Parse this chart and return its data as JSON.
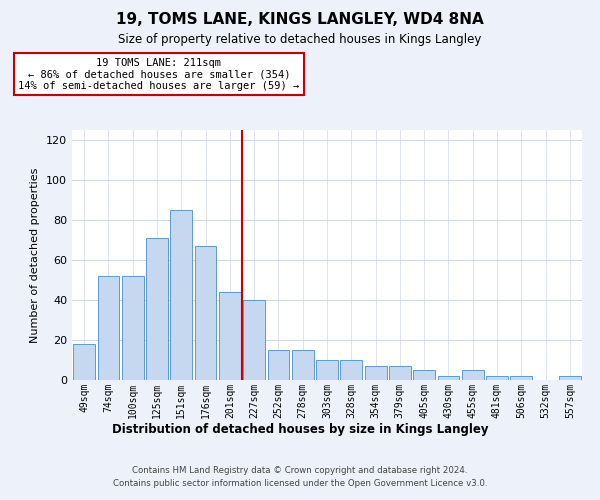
{
  "title": "19, TOMS LANE, KINGS LANGLEY, WD4 8NA",
  "subtitle": "Size of property relative to detached houses in Kings Langley",
  "xlabel": "Distribution of detached houses by size in Kings Langley",
  "ylabel": "Number of detached properties",
  "bar_color": "#c5d8f0",
  "bar_edge_color": "#5b9bd5",
  "categories": [
    "49sqm",
    "74sqm",
    "100sqm",
    "125sqm",
    "151sqm",
    "176sqm",
    "201sqm",
    "227sqm",
    "252sqm",
    "278sqm",
    "303sqm",
    "328sqm",
    "354sqm",
    "379sqm",
    "405sqm",
    "430sqm",
    "455sqm",
    "481sqm",
    "506sqm",
    "532sqm",
    "557sqm"
  ],
  "values": [
    18,
    52,
    52,
    71,
    85,
    67,
    44,
    40,
    15,
    15,
    10,
    10,
    7,
    7,
    5,
    2,
    5,
    2,
    2,
    0,
    2
  ],
  "ylim": [
    0,
    125
  ],
  "yticks": [
    0,
    20,
    40,
    60,
    80,
    100,
    120
  ],
  "vline_color": "#cc0000",
  "vline_pos": 6.5,
  "annotation_title": "19 TOMS LANE: 211sqm",
  "annotation_line1": "← 86% of detached houses are smaller (354)",
  "annotation_line2": "14% of semi-detached houses are larger (59) →",
  "footer_line1": "Contains HM Land Registry data © Crown copyright and database right 2024.",
  "footer_line2": "Contains public sector information licensed under the Open Government Licence v3.0.",
  "fig_bg_color": "#edf2fa",
  "plot_bg_color": "#ffffff",
  "grid_color": "#d0d8e8"
}
